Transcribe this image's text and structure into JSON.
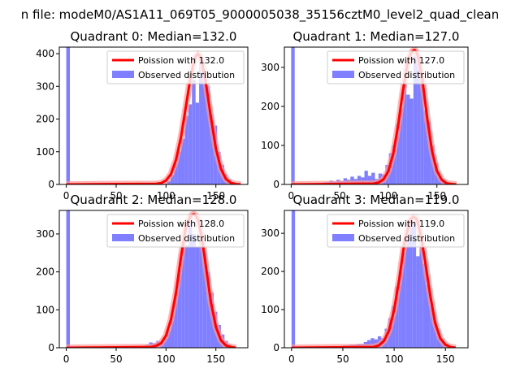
{
  "suptitle": "n file: modeM0/AS1A11_069T05_9000005038_35156cztM0_level2_quad_clean",
  "colors": {
    "hist": "#7f7fff",
    "curve": "#ff0000",
    "curve_halo": "#ff9999"
  },
  "chart_data": [
    {
      "type": "bar",
      "title": "Quadrant 0: Median=132.0",
      "xticks": [
        0,
        50,
        100,
        150
      ],
      "yticks": [
        0,
        100,
        200,
        300,
        400
      ],
      "xlim": [
        -7,
        182
      ],
      "ylim": [
        0,
        420
      ],
      "grid": false,
      "legend": "top-right",
      "series": [
        {
          "name": "Observed distribution",
          "kind": "histogram",
          "bins": [
            {
              "x0": 0,
              "x1": 3.6,
              "y": 420
            },
            {
              "x0": 86.4,
              "x1": 90.0,
              "y": 2
            },
            {
              "x0": 90.0,
              "x1": 93.6,
              "y": 4
            },
            {
              "x0": 93.6,
              "x1": 97.2,
              "y": 5
            },
            {
              "x0": 97.2,
              "x1": 100.8,
              "y": 3
            },
            {
              "x0": 100.8,
              "x1": 104.4,
              "y": 10
            },
            {
              "x0": 104.4,
              "x1": 108.0,
              "y": 30
            },
            {
              "x0": 108.0,
              "x1": 111.6,
              "y": 65
            },
            {
              "x0": 111.6,
              "x1": 115.2,
              "y": 100
            },
            {
              "x0": 115.2,
              "x1": 118.8,
              "y": 140
            },
            {
              "x0": 118.8,
              "x1": 122.4,
              "y": 210
            },
            {
              "x0": 122.4,
              "x1": 126.0,
              "y": 245
            },
            {
              "x0": 126.0,
              "x1": 129.6,
              "y": 320
            },
            {
              "x0": 129.6,
              "x1": 133.2,
              "y": 250
            },
            {
              "x0": 133.2,
              "x1": 136.8,
              "y": 390
            },
            {
              "x0": 136.8,
              "x1": 140.4,
              "y": 340
            },
            {
              "x0": 140.4,
              "x1": 144.0,
              "y": 300
            },
            {
              "x0": 144.0,
              "x1": 147.6,
              "y": 215
            },
            {
              "x0": 147.6,
              "x1": 151.2,
              "y": 180
            },
            {
              "x0": 151.2,
              "x1": 154.8,
              "y": 100
            },
            {
              "x0": 154.8,
              "x1": 158.4,
              "y": 60
            },
            {
              "x0": 158.4,
              "x1": 162.0,
              "y": 30
            },
            {
              "x0": 162.0,
              "x1": 165.6,
              "y": 15
            },
            {
              "x0": 165.6,
              "x1": 169.2,
              "y": 5
            }
          ]
        },
        {
          "name": "Poission with 132.0",
          "kind": "line",
          "x": [
            0,
            90,
            95,
            100,
            105,
            110,
            115,
            120,
            125,
            128,
            130,
            132,
            134,
            136,
            140,
            145,
            150,
            155,
            160,
            165,
            170,
            175
          ],
          "y": [
            0,
            2,
            4,
            12,
            32,
            75,
            145,
            240,
            335,
            375,
            392,
            400,
            392,
            375,
            310,
            205,
            110,
            48,
            17,
            5,
            1,
            0
          ]
        }
      ]
    },
    {
      "type": "bar",
      "title": "Quadrant 1: Median=127.0",
      "xticks": [
        0,
        50,
        100,
        150
      ],
      "yticks": [
        0,
        100,
        200,
        300
      ],
      "xlim": [
        -7,
        182
      ],
      "ylim": [
        0,
        352
      ],
      "grid": false,
      "legend": "top-right",
      "series": [
        {
          "name": "Observed distribution",
          "kind": "histogram",
          "bins": [
            {
              "x0": 0,
              "x1": 3.6,
              "y": 352
            },
            {
              "x0": 25.0,
              "x1": 28.6,
              "y": 3
            },
            {
              "x0": 28.6,
              "x1": 32.2,
              "y": 4
            },
            {
              "x0": 32.2,
              "x1": 35.8,
              "y": 5
            },
            {
              "x0": 35.8,
              "x1": 39.4,
              "y": 6
            },
            {
              "x0": 39.4,
              "x1": 43.0,
              "y": 10
            },
            {
              "x0": 43.0,
              "x1": 46.6,
              "y": 7
            },
            {
              "x0": 46.6,
              "x1": 50.2,
              "y": 12
            },
            {
              "x0": 50.2,
              "x1": 53.8,
              "y": 9
            },
            {
              "x0": 53.8,
              "x1": 57.4,
              "y": 16
            },
            {
              "x0": 57.4,
              "x1": 61.0,
              "y": 12
            },
            {
              "x0": 61.0,
              "x1": 64.6,
              "y": 20
            },
            {
              "x0": 64.6,
              "x1": 68.2,
              "y": 14
            },
            {
              "x0": 68.2,
              "x1": 71.8,
              "y": 22
            },
            {
              "x0": 71.8,
              "x1": 75.4,
              "y": 18
            },
            {
              "x0": 75.4,
              "x1": 79.0,
              "y": 35
            },
            {
              "x0": 79.0,
              "x1": 82.6,
              "y": 22
            },
            {
              "x0": 82.6,
              "x1": 86.2,
              "y": 30
            },
            {
              "x0": 86.2,
              "x1": 89.8,
              "y": 14
            },
            {
              "x0": 89.8,
              "x1": 93.4,
              "y": 28
            },
            {
              "x0": 93.4,
              "x1": 97.0,
              "y": 26
            },
            {
              "x0": 97.0,
              "x1": 100.6,
              "y": 50
            },
            {
              "x0": 100.6,
              "x1": 104.2,
              "y": 80
            },
            {
              "x0": 104.2,
              "x1": 107.8,
              "y": 100
            },
            {
              "x0": 107.8,
              "x1": 111.4,
              "y": 155
            },
            {
              "x0": 111.4,
              "x1": 115.0,
              "y": 195
            },
            {
              "x0": 115.0,
              "x1": 118.6,
              "y": 270
            },
            {
              "x0": 118.6,
              "x1": 122.2,
              "y": 230
            },
            {
              "x0": 122.2,
              "x1": 125.8,
              "y": 220
            },
            {
              "x0": 125.8,
              "x1": 129.4,
              "y": 330
            },
            {
              "x0": 129.4,
              "x1": 133.0,
              "y": 320
            },
            {
              "x0": 133.0,
              "x1": 136.6,
              "y": 270
            },
            {
              "x0": 136.6,
              "x1": 140.2,
              "y": 190
            },
            {
              "x0": 140.2,
              "x1": 143.8,
              "y": 160
            },
            {
              "x0": 143.8,
              "x1": 147.4,
              "y": 100
            },
            {
              "x0": 147.4,
              "x1": 151.0,
              "y": 55
            },
            {
              "x0": 151.0,
              "x1": 154.6,
              "y": 20
            },
            {
              "x0": 154.6,
              "x1": 158.2,
              "y": 12
            },
            {
              "x0": 158.2,
              "x1": 161.8,
              "y": 5
            }
          ]
        },
        {
          "name": "Poission with 127.0",
          "kind": "line",
          "x": [
            0,
            85,
            90,
            95,
            100,
            105,
            110,
            115,
            120,
            123,
            125,
            127,
            129,
            131,
            135,
            140,
            145,
            150,
            155,
            160,
            165,
            170
          ],
          "y": [
            0,
            2,
            5,
            13,
            34,
            78,
            150,
            240,
            315,
            335,
            342,
            345,
            340,
            325,
            270,
            170,
            85,
            35,
            12,
            3,
            1,
            0
          ]
        }
      ]
    },
    {
      "type": "bar",
      "title": "Quadrant 2: Median=128.0",
      "xticks": [
        0,
        50,
        100,
        150
      ],
      "yticks": [
        0,
        100,
        200,
        300
      ],
      "xlim": [
        -7,
        182
      ],
      "ylim": [
        0,
        362
      ],
      "grid": false,
      "legend": "top-right",
      "series": [
        {
          "name": "Observed distribution",
          "kind": "histogram",
          "bins": [
            {
              "x0": 0,
              "x1": 3.6,
              "y": 362
            },
            {
              "x0": 65.0,
              "x1": 68.6,
              "y": 2
            },
            {
              "x0": 68.6,
              "x1": 72.2,
              "y": 3
            },
            {
              "x0": 72.2,
              "x1": 75.8,
              "y": 3
            },
            {
              "x0": 75.8,
              "x1": 79.4,
              "y": 5
            },
            {
              "x0": 79.4,
              "x1": 83.0,
              "y": 8
            },
            {
              "x0": 83.0,
              "x1": 86.6,
              "y": 14
            },
            {
              "x0": 86.6,
              "x1": 90.2,
              "y": 12
            },
            {
              "x0": 90.2,
              "x1": 93.8,
              "y": 18
            },
            {
              "x0": 93.8,
              "x1": 97.4,
              "y": 15
            },
            {
              "x0": 97.4,
              "x1": 101.0,
              "y": 25
            },
            {
              "x0": 101.0,
              "x1": 104.6,
              "y": 45
            },
            {
              "x0": 104.6,
              "x1": 108.2,
              "y": 85
            },
            {
              "x0": 108.2,
              "x1": 111.8,
              "y": 145
            },
            {
              "x0": 111.8,
              "x1": 115.4,
              "y": 205
            },
            {
              "x0": 115.4,
              "x1": 119.0,
              "y": 280
            },
            {
              "x0": 119.0,
              "x1": 122.6,
              "y": 270
            },
            {
              "x0": 122.6,
              "x1": 126.2,
              "y": 350
            },
            {
              "x0": 126.2,
              "x1": 129.8,
              "y": 300
            },
            {
              "x0": 129.8,
              "x1": 133.4,
              "y": 265
            },
            {
              "x0": 133.4,
              "x1": 137.0,
              "y": 305
            },
            {
              "x0": 137.0,
              "x1": 140.6,
              "y": 250
            },
            {
              "x0": 140.6,
              "x1": 144.2,
              "y": 200
            },
            {
              "x0": 144.2,
              "x1": 147.8,
              "y": 145
            },
            {
              "x0": 147.8,
              "x1": 151.4,
              "y": 95
            },
            {
              "x0": 151.4,
              "x1": 155.0,
              "y": 60
            },
            {
              "x0": 155.0,
              "x1": 158.6,
              "y": 35
            },
            {
              "x0": 158.6,
              "x1": 162.2,
              "y": 18
            },
            {
              "x0": 162.2,
              "x1": 165.8,
              "y": 8
            },
            {
              "x0": 165.8,
              "x1": 169.4,
              "y": 4
            }
          ]
        },
        {
          "name": "Poission with 128.0",
          "kind": "line",
          "x": [
            0,
            85,
            90,
            95,
            100,
            105,
            110,
            115,
            120,
            124,
            126,
            128,
            130,
            132,
            136,
            140,
            145,
            150,
            155,
            160,
            165,
            170
          ],
          "y": [
            0,
            2,
            5,
            12,
            32,
            75,
            145,
            240,
            320,
            345,
            350,
            352,
            348,
            338,
            290,
            215,
            120,
            55,
            20,
            6,
            2,
            0
          ]
        }
      ]
    },
    {
      "type": "bar",
      "title": "Quadrant 3: Median=119.0",
      "xticks": [
        0,
        50,
        100,
        150
      ],
      "yticks": [
        0,
        100,
        200,
        300
      ],
      "xlim": [
        -7,
        172
      ],
      "ylim": [
        0,
        360
      ],
      "grid": false,
      "legend": "top-right",
      "series": [
        {
          "name": "Observed distribution",
          "kind": "histogram",
          "bins": [
            {
              "x0": 0,
              "x1": 3.4,
              "y": 360
            },
            {
              "x0": 50.0,
              "x1": 53.4,
              "y": 6
            },
            {
              "x0": 53.4,
              "x1": 56.8,
              "y": 6
            },
            {
              "x0": 56.8,
              "x1": 60.2,
              "y": 8
            },
            {
              "x0": 60.2,
              "x1": 63.6,
              "y": 8
            },
            {
              "x0": 63.6,
              "x1": 67.0,
              "y": 10
            },
            {
              "x0": 67.0,
              "x1": 70.4,
              "y": 10
            },
            {
              "x0": 70.4,
              "x1": 73.8,
              "y": 15
            },
            {
              "x0": 73.8,
              "x1": 77.2,
              "y": 20
            },
            {
              "x0": 77.2,
              "x1": 80.6,
              "y": 25
            },
            {
              "x0": 80.6,
              "x1": 84.0,
              "y": 22
            },
            {
              "x0": 84.0,
              "x1": 87.4,
              "y": 30
            },
            {
              "x0": 87.4,
              "x1": 90.8,
              "y": 25
            },
            {
              "x0": 90.8,
              "x1": 94.2,
              "y": 50
            },
            {
              "x0": 94.2,
              "x1": 97.6,
              "y": 78
            },
            {
              "x0": 97.6,
              "x1": 101.0,
              "y": 110
            },
            {
              "x0": 101.0,
              "x1": 104.4,
              "y": 160
            },
            {
              "x0": 104.4,
              "x1": 107.8,
              "y": 200
            },
            {
              "x0": 107.8,
              "x1": 111.2,
              "y": 250
            },
            {
              "x0": 111.2,
              "x1": 114.6,
              "y": 300
            },
            {
              "x0": 114.6,
              "x1": 118.0,
              "y": 340
            },
            {
              "x0": 118.0,
              "x1": 121.4,
              "y": 330
            },
            {
              "x0": 121.4,
              "x1": 124.8,
              "y": 240
            },
            {
              "x0": 124.8,
              "x1": 128.2,
              "y": 270
            },
            {
              "x0": 128.2,
              "x1": 131.6,
              "y": 220
            },
            {
              "x0": 131.6,
              "x1": 135.0,
              "y": 165
            },
            {
              "x0": 135.0,
              "x1": 138.4,
              "y": 110
            },
            {
              "x0": 138.4,
              "x1": 141.8,
              "y": 70
            },
            {
              "x0": 141.8,
              "x1": 145.2,
              "y": 38
            },
            {
              "x0": 145.2,
              "x1": 148.6,
              "y": 20
            },
            {
              "x0": 148.6,
              "x1": 152.0,
              "y": 12
            },
            {
              "x0": 152.0,
              "x1": 155.4,
              "y": 5
            }
          ]
        },
        {
          "name": "Poission with 119.0",
          "kind": "line",
          "x": [
            0,
            80,
            85,
            90,
            95,
            100,
            105,
            110,
            115,
            117,
            119,
            121,
            123,
            127,
            130,
            135,
            140,
            145,
            150,
            155,
            160
          ],
          "y": [
            0,
            2,
            6,
            18,
            45,
            100,
            180,
            275,
            330,
            340,
            343,
            340,
            330,
            280,
            230,
            140,
            65,
            25,
            8,
            2,
            0
          ]
        }
      ]
    }
  ]
}
